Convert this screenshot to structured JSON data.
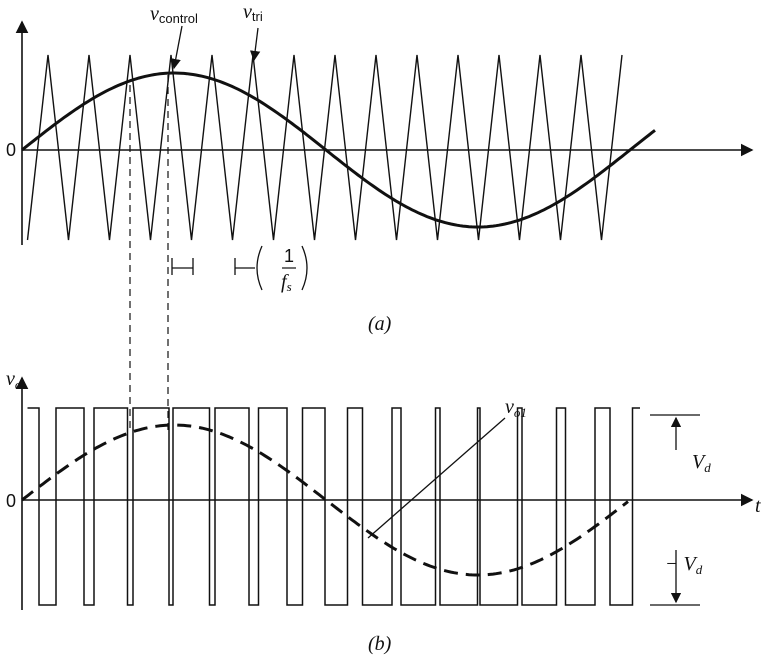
{
  "panel_a": {
    "origin": "0",
    "control": {
      "symbol": "v",
      "subscript": "control"
    },
    "triangle": {
      "symbol": "v",
      "subscript": "tri"
    },
    "period": {
      "numerator": "1",
      "denominator": "f",
      "subscript": "s"
    },
    "caption": "(a)"
  },
  "panel_b": {
    "y_axis": {
      "symbol": "v",
      "subscript": "o"
    },
    "origin": "0",
    "x_axis": "t",
    "fundamental": {
      "symbol": "v",
      "subscript": "o1"
    },
    "high": {
      "symbol": "V",
      "subscript": "d"
    },
    "low": {
      "sign": "−",
      "symbol": "V",
      "subscript": "d"
    },
    "caption": "(b)"
  }
}
